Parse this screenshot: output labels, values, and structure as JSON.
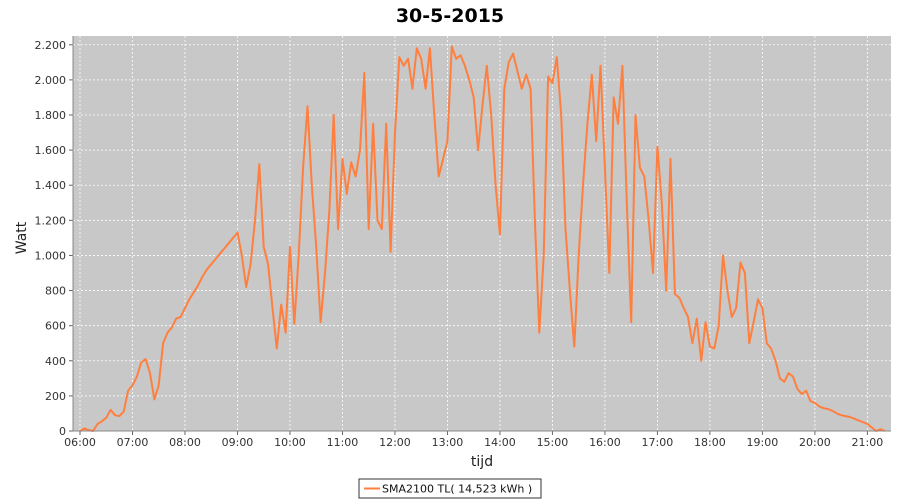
{
  "chart_data": {
    "type": "line",
    "title": "30-5-2015",
    "xlabel": "tijd",
    "ylabel": "Watt",
    "xlim": [
      "05:52",
      "21:27"
    ],
    "ylim": [
      0,
      2250
    ],
    "grid": true,
    "legend_position": "bottom-center",
    "x_ticks": [
      "06:00",
      "07:00",
      "08:00",
      "09:00",
      "10:00",
      "11:00",
      "12:00",
      "13:00",
      "14:00",
      "15:00",
      "16:00",
      "17:00",
      "18:00",
      "19:00",
      "20:00",
      "21:00"
    ],
    "y_ticks": [
      {
        "value": 0,
        "label": "0"
      },
      {
        "value": 200,
        "label": "200"
      },
      {
        "value": 400,
        "label": "400"
      },
      {
        "value": 600,
        "label": "600"
      },
      {
        "value": 800,
        "label": "800"
      },
      {
        "value": 1000,
        "label": "1.000"
      },
      {
        "value": 1200,
        "label": "1.200"
      },
      {
        "value": 1400,
        "label": "1.400"
      },
      {
        "value": 1600,
        "label": "1.600"
      },
      {
        "value": 1800,
        "label": "1.800"
      },
      {
        "value": 2000,
        "label": "2.000"
      },
      {
        "value": 2200,
        "label": "2.200"
      }
    ],
    "series": [
      {
        "name": "SMA2100 TL( 14,523 kWh )",
        "color": "#ff7f3f",
        "points": [
          [
            "06:00",
            0
          ],
          [
            "06:05",
            15
          ],
          [
            "06:10",
            5
          ],
          [
            "06:15",
            0
          ],
          [
            "06:20",
            40
          ],
          [
            "06:25",
            55
          ],
          [
            "06:30",
            75
          ],
          [
            "06:35",
            120
          ],
          [
            "06:40",
            90
          ],
          [
            "06:45",
            85
          ],
          [
            "06:50",
            110
          ],
          [
            "06:55",
            230
          ],
          [
            "07:00",
            260
          ],
          [
            "07:05",
            310
          ],
          [
            "07:10",
            390
          ],
          [
            "07:15",
            410
          ],
          [
            "07:20",
            330
          ],
          [
            "07:25",
            180
          ],
          [
            "07:30",
            260
          ],
          [
            "07:35",
            500
          ],
          [
            "07:40",
            560
          ],
          [
            "07:45",
            590
          ],
          [
            "07:50",
            640
          ],
          [
            "07:55",
            650
          ],
          [
            "08:00",
            700
          ],
          [
            "08:05",
            750
          ],
          [
            "08:10",
            790
          ],
          [
            "08:15",
            830
          ],
          [
            "08:20",
            880
          ],
          [
            "08:25",
            920
          ],
          [
            "08:30",
            950
          ],
          [
            "08:35",
            980
          ],
          [
            "08:40",
            1010
          ],
          [
            "08:45",
            1040
          ],
          [
            "08:50",
            1070
          ],
          [
            "08:55",
            1100
          ],
          [
            "09:00",
            1130
          ],
          [
            "09:05",
            1000
          ],
          [
            "09:10",
            820
          ],
          [
            "09:15",
            950
          ],
          [
            "09:20",
            1200
          ],
          [
            "09:25",
            1520
          ],
          [
            "09:30",
            1050
          ],
          [
            "09:35",
            950
          ],
          [
            "09:40",
            700
          ],
          [
            "09:45",
            470
          ],
          [
            "09:50",
            720
          ],
          [
            "09:55",
            560
          ],
          [
            "10:00",
            1050
          ],
          [
            "10:05",
            610
          ],
          [
            "10:10",
            1000
          ],
          [
            "10:15",
            1500
          ],
          [
            "10:20",
            1850
          ],
          [
            "10:25",
            1400
          ],
          [
            "10:30",
            1050
          ],
          [
            "10:35",
            620
          ],
          [
            "10:40",
            900
          ],
          [
            "10:45",
            1250
          ],
          [
            "10:50",
            1800
          ],
          [
            "10:55",
            1150
          ],
          [
            "11:00",
            1550
          ],
          [
            "11:05",
            1350
          ],
          [
            "11:10",
            1530
          ],
          [
            "11:15",
            1450
          ],
          [
            "11:20",
            1600
          ],
          [
            "11:25",
            2040
          ],
          [
            "11:30",
            1150
          ],
          [
            "11:35",
            1750
          ],
          [
            "11:40",
            1200
          ],
          [
            "11:45",
            1150
          ],
          [
            "11:50",
            1750
          ],
          [
            "11:55",
            1020
          ],
          [
            "12:00",
            1700
          ],
          [
            "12:05",
            2130
          ],
          [
            "12:10",
            2080
          ],
          [
            "12:15",
            2120
          ],
          [
            "12:20",
            1950
          ],
          [
            "12:25",
            2180
          ],
          [
            "12:30",
            2120
          ],
          [
            "12:35",
            1950
          ],
          [
            "12:40",
            2180
          ],
          [
            "12:45",
            1800
          ],
          [
            "12:50",
            1450
          ],
          [
            "12:55",
            1550
          ],
          [
            "13:00",
            1650
          ],
          [
            "13:05",
            2190
          ],
          [
            "13:10",
            2120
          ],
          [
            "13:15",
            2140
          ],
          [
            "13:20",
            2080
          ],
          [
            "13:25",
            2000
          ],
          [
            "13:30",
            1900
          ],
          [
            "13:35",
            1600
          ],
          [
            "13:40",
            1850
          ],
          [
            "13:45",
            2080
          ],
          [
            "13:50",
            1800
          ],
          [
            "13:55",
            1400
          ],
          [
            "14:00",
            1120
          ],
          [
            "14:05",
            1950
          ],
          [
            "14:10",
            2100
          ],
          [
            "14:15",
            2150
          ],
          [
            "14:20",
            2050
          ],
          [
            "14:25",
            1950
          ],
          [
            "14:30",
            2030
          ],
          [
            "14:35",
            1950
          ],
          [
            "14:40",
            1200
          ],
          [
            "14:45",
            560
          ],
          [
            "14:50",
            1000
          ],
          [
            "14:55",
            2020
          ],
          [
            "15:00",
            1980
          ],
          [
            "15:05",
            2130
          ],
          [
            "15:10",
            1800
          ],
          [
            "15:15",
            1150
          ],
          [
            "15:20",
            800
          ],
          [
            "15:25",
            480
          ],
          [
            "15:30",
            1000
          ],
          [
            "15:35",
            1400
          ],
          [
            "15:40",
            1750
          ],
          [
            "15:45",
            2030
          ],
          [
            "15:50",
            1650
          ],
          [
            "15:55",
            2080
          ],
          [
            "16:00",
            1500
          ],
          [
            "16:05",
            900
          ],
          [
            "16:10",
            1900
          ],
          [
            "16:15",
            1750
          ],
          [
            "16:20",
            2080
          ],
          [
            "16:25",
            1300
          ],
          [
            "16:30",
            620
          ],
          [
            "16:35",
            1800
          ],
          [
            "16:40",
            1500
          ],
          [
            "16:45",
            1450
          ],
          [
            "16:50",
            1200
          ],
          [
            "16:55",
            900
          ],
          [
            "17:00",
            1620
          ],
          [
            "17:05",
            1300
          ],
          [
            "17:10",
            800
          ],
          [
            "17:15",
            1550
          ],
          [
            "17:20",
            780
          ],
          [
            "17:25",
            760
          ],
          [
            "17:30",
            700
          ],
          [
            "17:35",
            650
          ],
          [
            "17:40",
            500
          ],
          [
            "17:45",
            640
          ],
          [
            "17:50",
            400
          ],
          [
            "17:55",
            620
          ],
          [
            "18:00",
            480
          ],
          [
            "18:05",
            470
          ],
          [
            "18:10",
            600
          ],
          [
            "18:15",
            1000
          ],
          [
            "18:20",
            800
          ],
          [
            "18:25",
            650
          ],
          [
            "18:30",
            700
          ],
          [
            "18:35",
            960
          ],
          [
            "18:40",
            900
          ],
          [
            "18:45",
            500
          ],
          [
            "18:50",
            620
          ],
          [
            "18:55",
            750
          ],
          [
            "19:00",
            700
          ],
          [
            "19:05",
            500
          ],
          [
            "19:10",
            470
          ],
          [
            "19:15",
            400
          ],
          [
            "19:20",
            300
          ],
          [
            "19:25",
            280
          ],
          [
            "19:30",
            330
          ],
          [
            "19:35",
            310
          ],
          [
            "19:40",
            240
          ],
          [
            "19:45",
            210
          ],
          [
            "19:50",
            230
          ],
          [
            "19:55",
            170
          ],
          [
            "20:00",
            160
          ],
          [
            "20:05",
            140
          ],
          [
            "20:10",
            130
          ],
          [
            "20:15",
            125
          ],
          [
            "20:20",
            115
          ],
          [
            "20:25",
            100
          ],
          [
            "20:30",
            90
          ],
          [
            "20:35",
            85
          ],
          [
            "20:40",
            80
          ],
          [
            "20:45",
            70
          ],
          [
            "20:50",
            60
          ],
          [
            "20:55",
            50
          ],
          [
            "21:00",
            40
          ],
          [
            "21:05",
            20
          ],
          [
            "21:10",
            0
          ],
          [
            "21:15",
            10
          ],
          [
            "21:20",
            0
          ]
        ]
      }
    ]
  },
  "legend": {
    "label": "SMA2100 TL( 14,523 kWh )"
  },
  "colors": {
    "plot_background": "#c8c8c8",
    "gridline": "#ffffff",
    "series_line": "#ff7f3f"
  }
}
